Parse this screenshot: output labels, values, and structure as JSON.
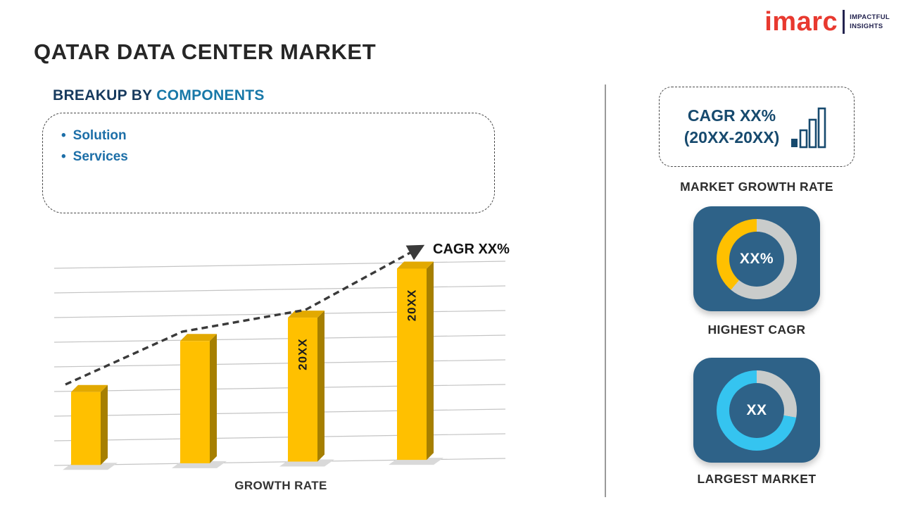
{
  "title": "QATAR DATA CENTER MARKET",
  "logo": {
    "brand": "imarc",
    "tagline": [
      "IMPACTFUL",
      "INSIGHTS"
    ]
  },
  "breakup": {
    "heading_prefix": "BREAKUP BY",
    "heading_highlight": "COMPONENTS",
    "items": [
      "Solution",
      "Services"
    ]
  },
  "sidebar": {
    "cagr_box": {
      "line1": "CAGR XX%",
      "line2": "(20XX-20XX)"
    },
    "market_growth_label": "MARKET GROWTH RATE"
  },
  "colors": {
    "navy": "#173a5e",
    "heading_blue": "#1878a8",
    "bullet_blue": "#1d6fa8",
    "bar_gold": "#ffc000",
    "bar_gold_top": "#e2a900",
    "bar_gold_side": "#a67f00",
    "card_bg": "#2e6288",
    "donut_gray": "#c9cccb",
    "donut_cyan": "#35c4f0",
    "logo_red": "#e8392f",
    "logo_dark": "#23234f"
  },
  "chart_data": [
    {
      "type": "bar",
      "title": "Growth Rate Trend",
      "categories": [
        "",
        "",
        "20XX",
        "20XX"
      ],
      "bar_labels": [
        "",
        "",
        "20XX",
        "20XX"
      ],
      "values": [
        37,
        62,
        73,
        97
      ],
      "ylim": [
        0,
        100
      ],
      "xlabel": "GROWTH RATE",
      "ylabel": "",
      "annotation": "CAGR XX%",
      "trend": "increasing dashed arrow",
      "grid": "on",
      "bar_color": "#ffc000"
    },
    {
      "type": "pie",
      "title": "HIGHEST CAGR",
      "center_text": "XX%",
      "segments": [
        {
          "name": "remainder",
          "color": "#c9cccb",
          "from_deg": 0,
          "to_deg": 220,
          "value_pct": 61
        },
        {
          "name": "cagr-share",
          "color": "#ffc000",
          "from_deg": 220,
          "to_deg": 360,
          "value_pct": 39
        }
      ]
    },
    {
      "type": "pie",
      "title": "LARGEST MARKET",
      "center_text": "XX",
      "segments": [
        {
          "name": "remainder",
          "color": "#c9cccb",
          "from_deg": 0,
          "to_deg": 100,
          "value_pct": 28
        },
        {
          "name": "market-share",
          "color": "#35c4f0",
          "from_deg": 100,
          "to_deg": 360,
          "value_pct": 72
        }
      ]
    }
  ]
}
